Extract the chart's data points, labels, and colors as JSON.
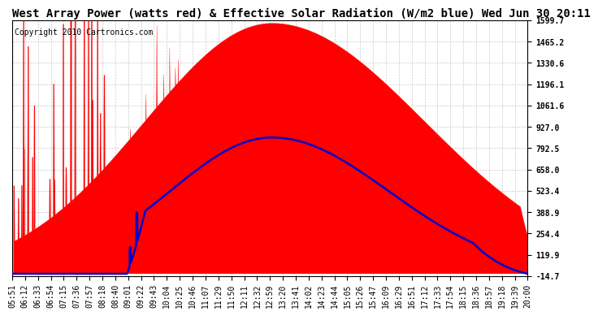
{
  "title": "West Array Power (watts red) & Effective Solar Radiation (W/m2 blue) Wed Jun 30 20:11",
  "copyright": "Copyright 2010 Cartronics.com",
  "background_color": "#ffffff",
  "plot_bg_color": "#ffffff",
  "grid_color": "#bbbbbb",
  "red_color": "#ff0000",
  "blue_color": "#0000cc",
  "y_min": -14.7,
  "y_max": 1599.7,
  "y_ticks": [
    1599.7,
    1465.2,
    1330.6,
    1196.1,
    1061.6,
    927.0,
    792.5,
    658.0,
    523.4,
    388.9,
    254.4,
    119.9,
    -14.7
  ],
  "x_labels": [
    "05:51",
    "06:12",
    "06:33",
    "06:54",
    "07:15",
    "07:36",
    "07:57",
    "08:18",
    "08:40",
    "09:01",
    "09:22",
    "09:43",
    "10:04",
    "10:25",
    "10:46",
    "11:07",
    "11:29",
    "11:50",
    "12:11",
    "12:32",
    "12:59",
    "13:20",
    "13:41",
    "14:02",
    "14:23",
    "14:44",
    "15:05",
    "15:26",
    "15:47",
    "16:09",
    "16:29",
    "16:51",
    "17:12",
    "17:33",
    "17:54",
    "18:15",
    "18:36",
    "18:57",
    "19:18",
    "19:39",
    "20:00"
  ],
  "title_fontsize": 10,
  "tick_fontsize": 7,
  "copyright_fontsize": 7,
  "red_peak": 1580.0,
  "blue_peak": 860.0,
  "red_noon_idx": 20,
  "blue_noon_idx": 20
}
